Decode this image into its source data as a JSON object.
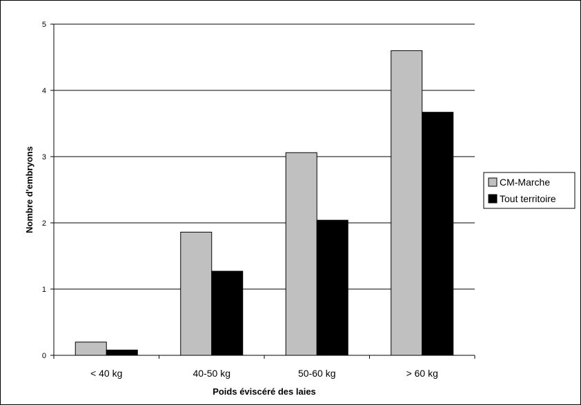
{
  "chart_data": {
    "type": "bar",
    "title": "",
    "xlabel": "Poids éviscéré des laies",
    "ylabel": "Nombre d'embryons",
    "categories": [
      "< 40 kg",
      "40-50 kg",
      "50-60 kg",
      "> 60 kg"
    ],
    "series": [
      {
        "name": "CM-Marche",
        "color": "#c0c0c0",
        "values": [
          0.2,
          1.86,
          3.06,
          4.6
        ]
      },
      {
        "name": "Tout territoire",
        "color": "#000000",
        "values": [
          0.08,
          1.27,
          2.04,
          3.67
        ]
      }
    ],
    "ylim": [
      0,
      5
    ],
    "yticks": [
      0,
      1,
      2,
      3,
      4,
      5
    ],
    "grid": true,
    "legend_position": "right"
  }
}
